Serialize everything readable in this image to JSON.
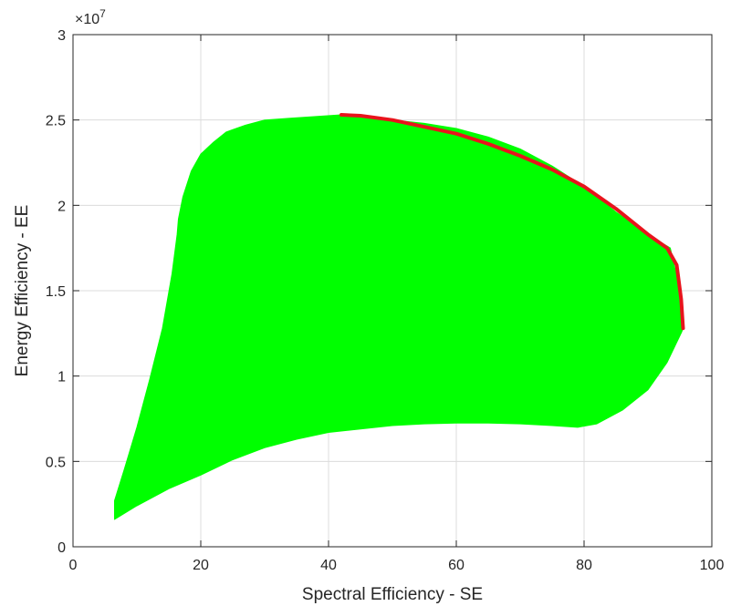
{
  "chart_data": {
    "type": "area",
    "xlabel": "Spectral Efficiency - SE",
    "ylabel": "Energy Efficiency - EE",
    "xlim": [
      0,
      100
    ],
    "ylim": [
      0,
      3
    ],
    "xticks": [
      0,
      20,
      40,
      60,
      80,
      100
    ],
    "xtick_labels": [
      "0",
      "20",
      "40",
      "60",
      "80",
      "100"
    ],
    "yticks": [
      0,
      0.5,
      1,
      1.5,
      2,
      2.5,
      3
    ],
    "ytick_labels": [
      "0",
      "0.5",
      "1",
      "1.5",
      "2",
      "2.5",
      "3"
    ],
    "y_exponent_base": "×10",
    "y_exponent_power": "7",
    "grid": true,
    "series": [
      {
        "style": "filled-region",
        "color": "#00ff00",
        "x": [
          6.5,
          10,
          15,
          20,
          25,
          30,
          35,
          40,
          45,
          50,
          55,
          60,
          65,
          70,
          75,
          79,
          82,
          86,
          90,
          93,
          95.3,
          95.5,
          95,
          93.5,
          90,
          85,
          80,
          75,
          70,
          65,
          60,
          55,
          50,
          45,
          42,
          38,
          34,
          30,
          27,
          24,
          22,
          20,
          18.5,
          17.2,
          16.5,
          16.3,
          15.5,
          14,
          12,
          10,
          8,
          6.5
        ],
        "y": [
          0.16,
          0.24,
          0.34,
          0.42,
          0.51,
          0.58,
          0.63,
          0.67,
          0.69,
          0.71,
          0.72,
          0.725,
          0.725,
          0.72,
          0.71,
          0.7,
          0.72,
          0.8,
          0.92,
          1.08,
          1.26,
          1.28,
          1.5,
          1.75,
          1.83,
          1.96,
          2.11,
          2.23,
          2.33,
          2.4,
          2.45,
          2.48,
          2.5,
          2.52,
          2.53,
          2.52,
          2.51,
          2.5,
          2.47,
          2.43,
          2.37,
          2.3,
          2.2,
          2.05,
          1.92,
          1.83,
          1.6,
          1.28,
          0.98,
          0.7,
          0.45,
          0.27
        ]
      },
      {
        "style": "line",
        "color": "#e8141c",
        "x": [
          42,
          45,
          50,
          55,
          60,
          65,
          70,
          75,
          80,
          85,
          90,
          93,
          94.5,
          95.2,
          95.5
        ],
        "y": [
          2.53,
          2.525,
          2.5,
          2.46,
          2.42,
          2.36,
          2.29,
          2.21,
          2.11,
          1.98,
          1.83,
          1.75,
          1.65,
          1.45,
          1.28
        ]
      }
    ]
  }
}
